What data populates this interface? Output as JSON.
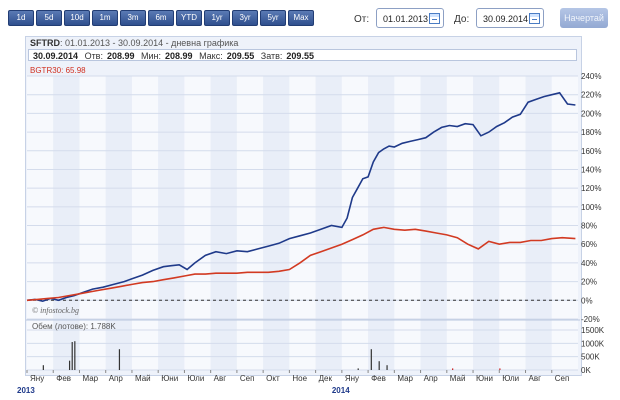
{
  "toolbar": {
    "ranges": [
      "1d",
      "5d",
      "10d",
      "1m",
      "3m",
      "6m",
      "YTD",
      "1yr",
      "3yr",
      "5yr",
      "Max"
    ],
    "from_label": "От:",
    "from_value": "01.01.2013",
    "to_label": "До:",
    "to_value": "30.09.2014",
    "search_label": "Начертай",
    "calendar_icon": "calendar-icon"
  },
  "header": {
    "symbol": "SFTRD",
    "subtitle": ": 01.01.2013 - 30.09.2014 - дневна графика"
  },
  "stats": {
    "date": "30.09.2014",
    "open_label": "Отв:",
    "open": "208.99",
    "min_label": "Мин:",
    "min": "208.99",
    "max_label": "Макс:",
    "max": "209.55",
    "close_label": "Затв:",
    "close": "209.55"
  },
  "benchmark_label": "BGTR30: 65.98",
  "watermark": "© infostock.bg",
  "volume_label": "Обем (лотове): 1.788K",
  "colors": {
    "primary": "#1f3a8a",
    "benchmark": "#d23a22",
    "volume": "#333333",
    "volume_alt": "#cc2222"
  },
  "chart_data": [
    {
      "type": "line",
      "ylim": [
        -20,
        240
      ],
      "yticks": [
        "240%",
        "220%",
        "200%",
        "180%",
        "160%",
        "140%",
        "120%",
        "100%",
        "80%",
        "60%",
        "40%",
        "20%",
        "0%",
        "-20%"
      ],
      "x_labels": [
        "Яну",
        "Фев",
        "Мар",
        "Апр",
        "Май",
        "Юни",
        "Юли",
        "Авг",
        "Сеп",
        "Окт",
        "Ное",
        "Дек",
        "Яну",
        "Фев",
        "Мар",
        "Апр",
        "Май",
        "Юни",
        "Юли",
        "Авг",
        "Сеп"
      ],
      "year_labels": [
        "2013",
        "2014"
      ],
      "series": [
        {
          "name": "SFTRD",
          "x": [
            0,
            0.3,
            0.6,
            0.9,
            1.2,
            1.5,
            1.8,
            2.1,
            2.5,
            2.9,
            3.3,
            3.7,
            4.0,
            4.4,
            4.8,
            5.2,
            5.5,
            5.8,
            6.1,
            6.4,
            6.8,
            7.2,
            7.6,
            8.0,
            8.4,
            8.8,
            9.2,
            9.6,
            10.0,
            10.4,
            10.8,
            11.2,
            11.6,
            12.0,
            12.2,
            12.4,
            12.6,
            12.8,
            13.0,
            13.2,
            13.4,
            13.6,
            13.8,
            14.0,
            14.3,
            14.6,
            14.9,
            15.2,
            15.5,
            15.8,
            16.1,
            16.4,
            16.7,
            17.0,
            17.3,
            17.6,
            17.9,
            18.2,
            18.5,
            18.8,
            19.1,
            19.4,
            19.7,
            20.0,
            20.3,
            20.6,
            20.9
          ],
          "values": [
            0,
            1,
            -1,
            2,
            0,
            3,
            5,
            8,
            12,
            14,
            17,
            20,
            23,
            27,
            32,
            36,
            37,
            38,
            33,
            40,
            48,
            52,
            50,
            53,
            52,
            55,
            58,
            61,
            66,
            69,
            72,
            76,
            80,
            78,
            88,
            110,
            120,
            130,
            132,
            148,
            158,
            162,
            165,
            164,
            168,
            170,
            172,
            174,
            180,
            185,
            187,
            186,
            189,
            188,
            176,
            180,
            186,
            190,
            196,
            199,
            212,
            215,
            218,
            220,
            222,
            210,
            209
          ]
        },
        {
          "name": "BGTR30",
          "x": [
            0,
            0.4,
            0.8,
            1.2,
            1.6,
            2.0,
            2.4,
            2.8,
            3.2,
            3.6,
            4.0,
            4.4,
            4.8,
            5.2,
            5.6,
            6.0,
            6.4,
            6.8,
            7.2,
            7.6,
            8.0,
            8.4,
            8.8,
            9.2,
            9.6,
            10.0,
            10.4,
            10.8,
            11.2,
            11.6,
            12.0,
            12.4,
            12.8,
            13.2,
            13.6,
            14.0,
            14.4,
            14.8,
            15.2,
            15.6,
            16.0,
            16.4,
            16.8,
            17.2,
            17.6,
            18.0,
            18.4,
            18.8,
            19.2,
            19.6,
            20.0,
            20.4,
            20.9
          ],
          "values": [
            0,
            1,
            2,
            3,
            5,
            7,
            9,
            11,
            13,
            15,
            17,
            19,
            20,
            22,
            24,
            26,
            28,
            28,
            29,
            29,
            29,
            30,
            30,
            30,
            31,
            33,
            40,
            48,
            52,
            56,
            60,
            65,
            70,
            76,
            78,
            76,
            75,
            76,
            74,
            72,
            70,
            67,
            60,
            55,
            63,
            60,
            62,
            62,
            64,
            64,
            66,
            67,
            66
          ]
        }
      ]
    },
    {
      "type": "bar",
      "ylim": [
        0,
        1500
      ],
      "yticks": [
        "1500K",
        "1000K",
        "500K",
        "0K"
      ],
      "values_x": [
        0.6,
        1.6,
        1.7,
        1.8,
        3.5,
        12.6,
        13.1,
        13.4,
        13.7,
        16.2,
        18.0
      ],
      "values": [
        180,
        350,
        1050,
        1080,
        780,
        60,
        780,
        330,
        180,
        60,
        60
      ],
      "series_name": ""
    }
  ]
}
